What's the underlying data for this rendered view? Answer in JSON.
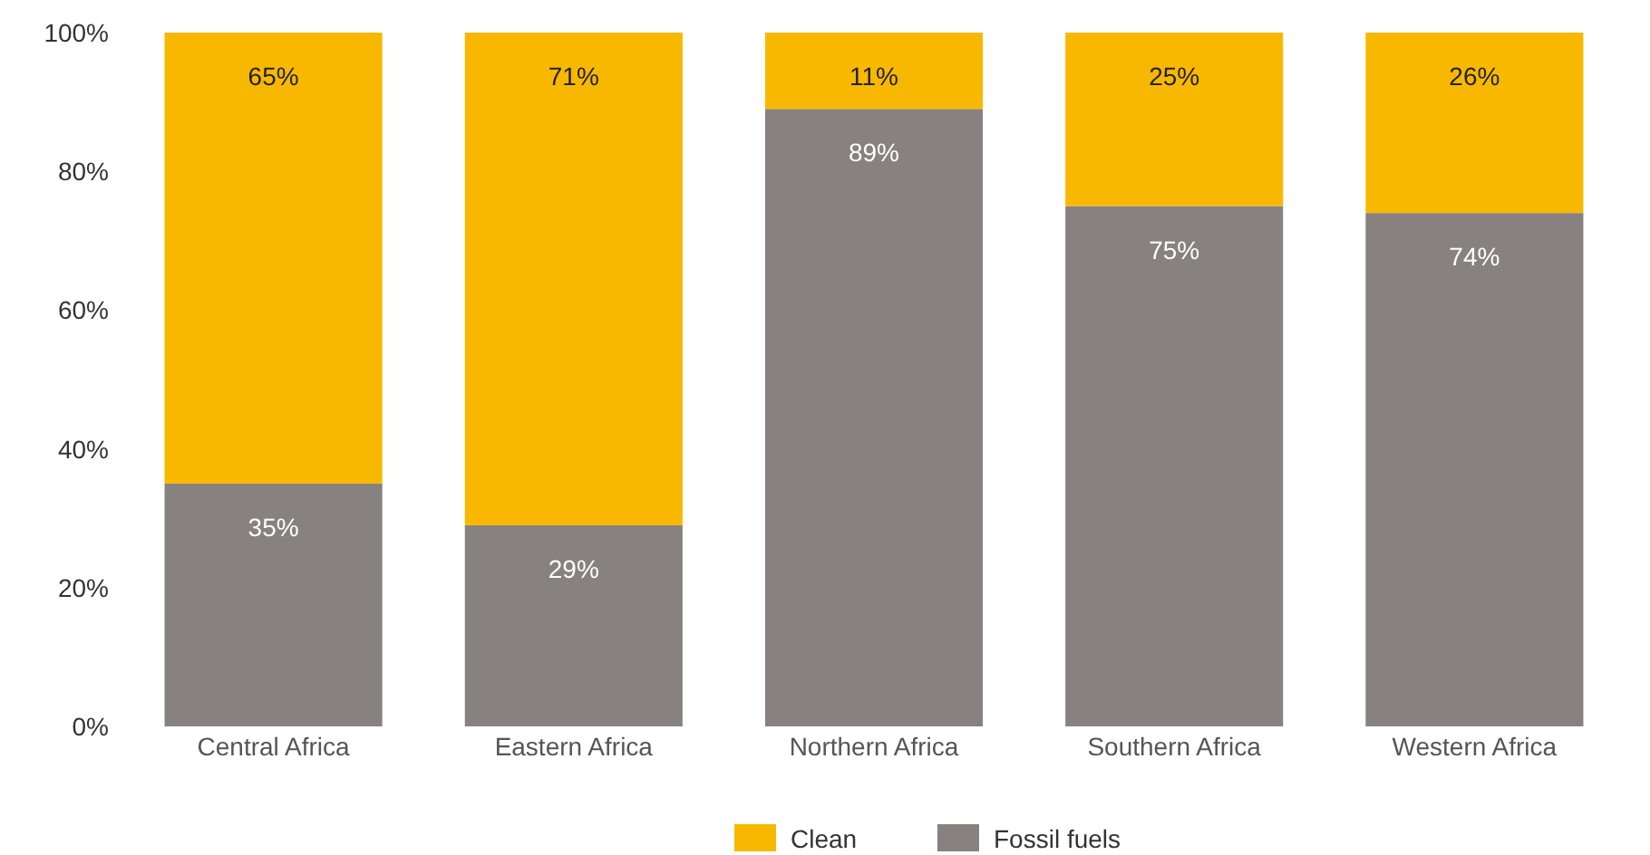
{
  "chart_data": {
    "type": "bar",
    "stacked": true,
    "categories": [
      "Central Africa",
      "Eastern Africa",
      "Northern Africa",
      "Southern Africa",
      "Western Africa"
    ],
    "series": [
      {
        "name": "Fossil fuels",
        "color": "#878280",
        "values": [
          35,
          29,
          89,
          75,
          74
        ]
      },
      {
        "name": "Clean",
        "color": "#f9b800",
        "values": [
          65,
          71,
          11,
          25,
          26
        ]
      }
    ],
    "ylim": [
      0,
      100
    ],
    "yticks": [
      {
        "value": 0,
        "label": "0%"
      },
      {
        "value": 20,
        "label": "20%"
      },
      {
        "value": 40,
        "label": "40%"
      },
      {
        "value": 60,
        "label": "60%"
      },
      {
        "value": 80,
        "label": "80%"
      },
      {
        "value": 100,
        "label": "100%"
      }
    ],
    "value_labels": [
      [
        "35%",
        "29%",
        "89%",
        "75%",
        "74%"
      ],
      [
        "65%",
        "71%",
        "11%",
        "25%",
        "26%"
      ]
    ],
    "legend": "bottom",
    "grid": false
  }
}
